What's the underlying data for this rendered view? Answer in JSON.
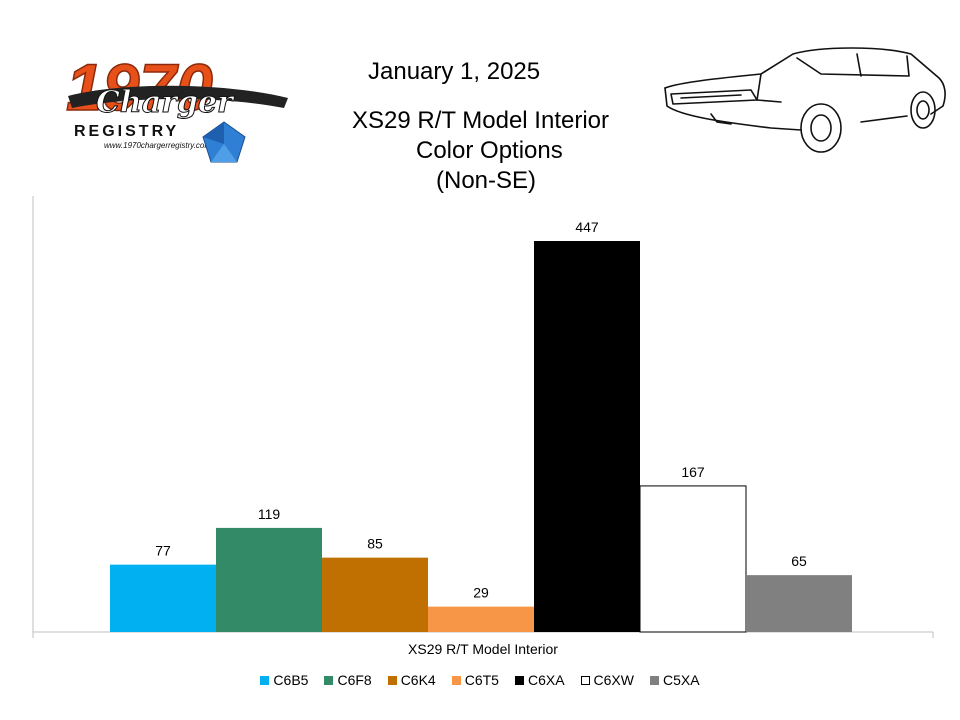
{
  "header": {
    "date": "January 1, 2025",
    "title_lines": [
      "XS29 R/T Model Interior",
      "Color Options",
      "(Non-SE)"
    ]
  },
  "logo": {
    "number": "1970",
    "script": "Charger",
    "word": "REGISTRY",
    "url": "www.1970chargerregistry.com/"
  },
  "chart_data": {
    "type": "bar",
    "categories": [
      "XS29 R/T Model Interior"
    ],
    "series": [
      {
        "name": "C6B5",
        "values": [
          77
        ],
        "color": "#00B0F0"
      },
      {
        "name": "C6F8",
        "values": [
          119
        ],
        "color": "#338A66"
      },
      {
        "name": "C6K4",
        "values": [
          85
        ],
        "color": "#C07000"
      },
      {
        "name": "C6T5",
        "values": [
          29
        ],
        "color": "#F79646"
      },
      {
        "name": "C6XA",
        "values": [
          447
        ],
        "color": "#000000"
      },
      {
        "name": "C6XW",
        "values": [
          167
        ],
        "color": "#FFFFFF"
      },
      {
        "name": "C5XA",
        "values": [
          65
        ],
        "color": "#808080"
      }
    ],
    "ylim": [
      0,
      500
    ],
    "grid": false,
    "legend": "bottom",
    "xlabel": "",
    "ylabel": ""
  }
}
